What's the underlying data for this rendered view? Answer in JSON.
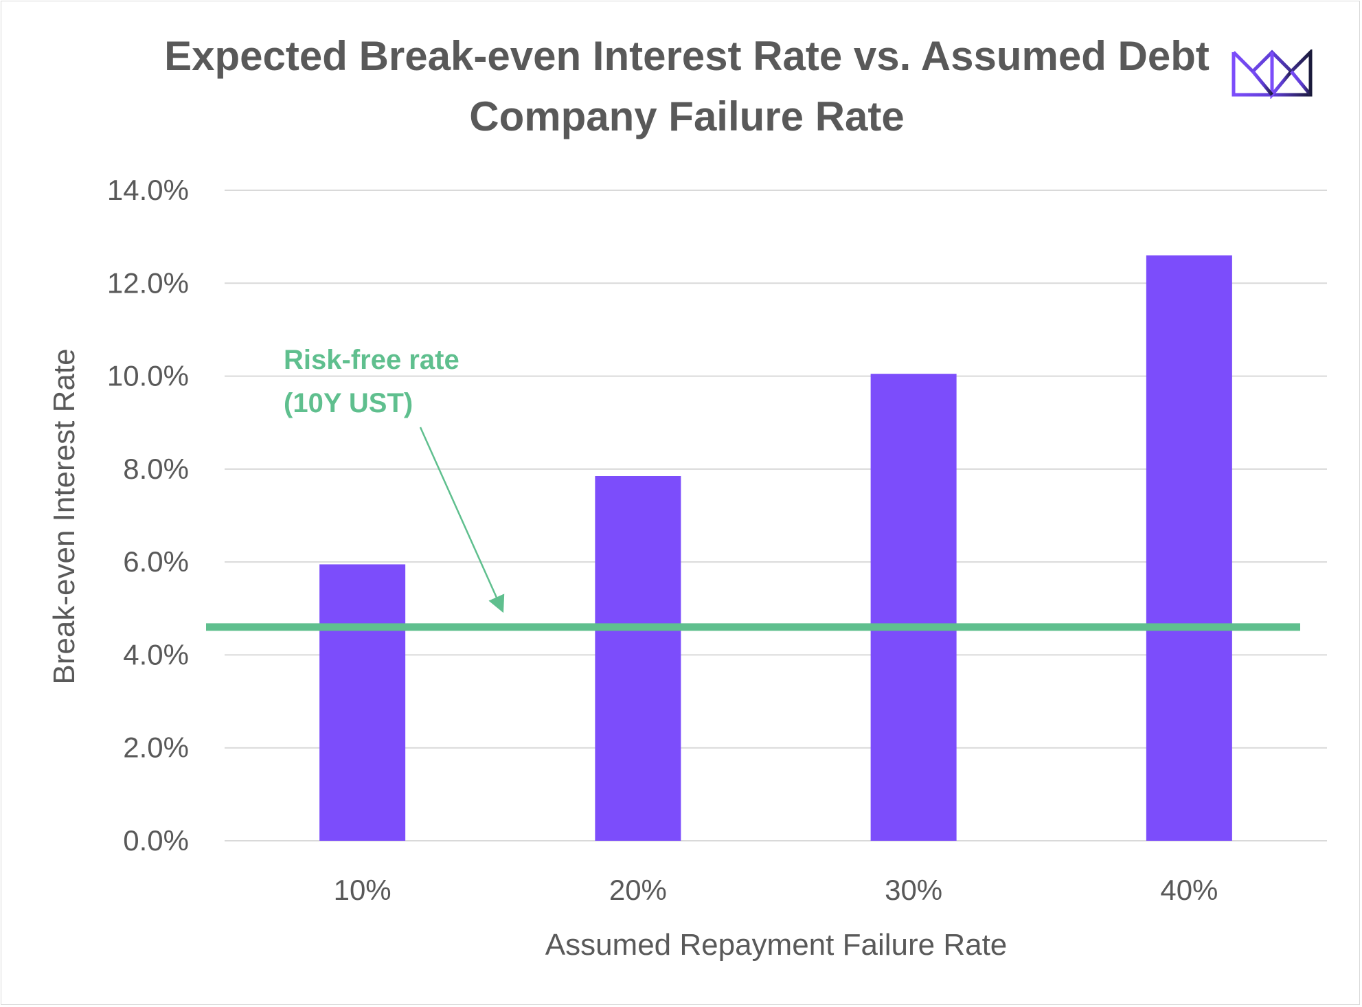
{
  "chart_data": {
    "type": "bar",
    "title": "Expected Break-even Interest Rate vs. Assumed Debt Company Failure Rate",
    "xlabel": "Assumed Repayment Failure Rate",
    "ylabel": "Break-even Interest Rate",
    "categories": [
      "10%",
      "20%",
      "30%",
      "40%"
    ],
    "values": [
      5.95,
      7.85,
      10.05,
      12.6
    ],
    "ylim": [
      0,
      14
    ],
    "yticks": [
      0,
      2,
      4,
      6,
      8,
      10,
      12,
      14
    ],
    "ytick_labels": [
      "0.0%",
      "2.0%",
      "4.0%",
      "6.0%",
      "8.0%",
      "10.0%",
      "12.0%",
      "14.0%"
    ],
    "grid": true,
    "reference_line": {
      "value": 4.6,
      "label_line1": "Risk-free rate",
      "label_line2": "(10Y UST)"
    },
    "colors": {
      "bar": "#7c4dfb",
      "reference_line": "#5fbf8e",
      "grid": "#d9d9d9",
      "text": "#595959"
    }
  },
  "logo": {
    "name": "crown-logo",
    "colors": [
      "#7c4dfb",
      "#1a1a3a"
    ]
  }
}
